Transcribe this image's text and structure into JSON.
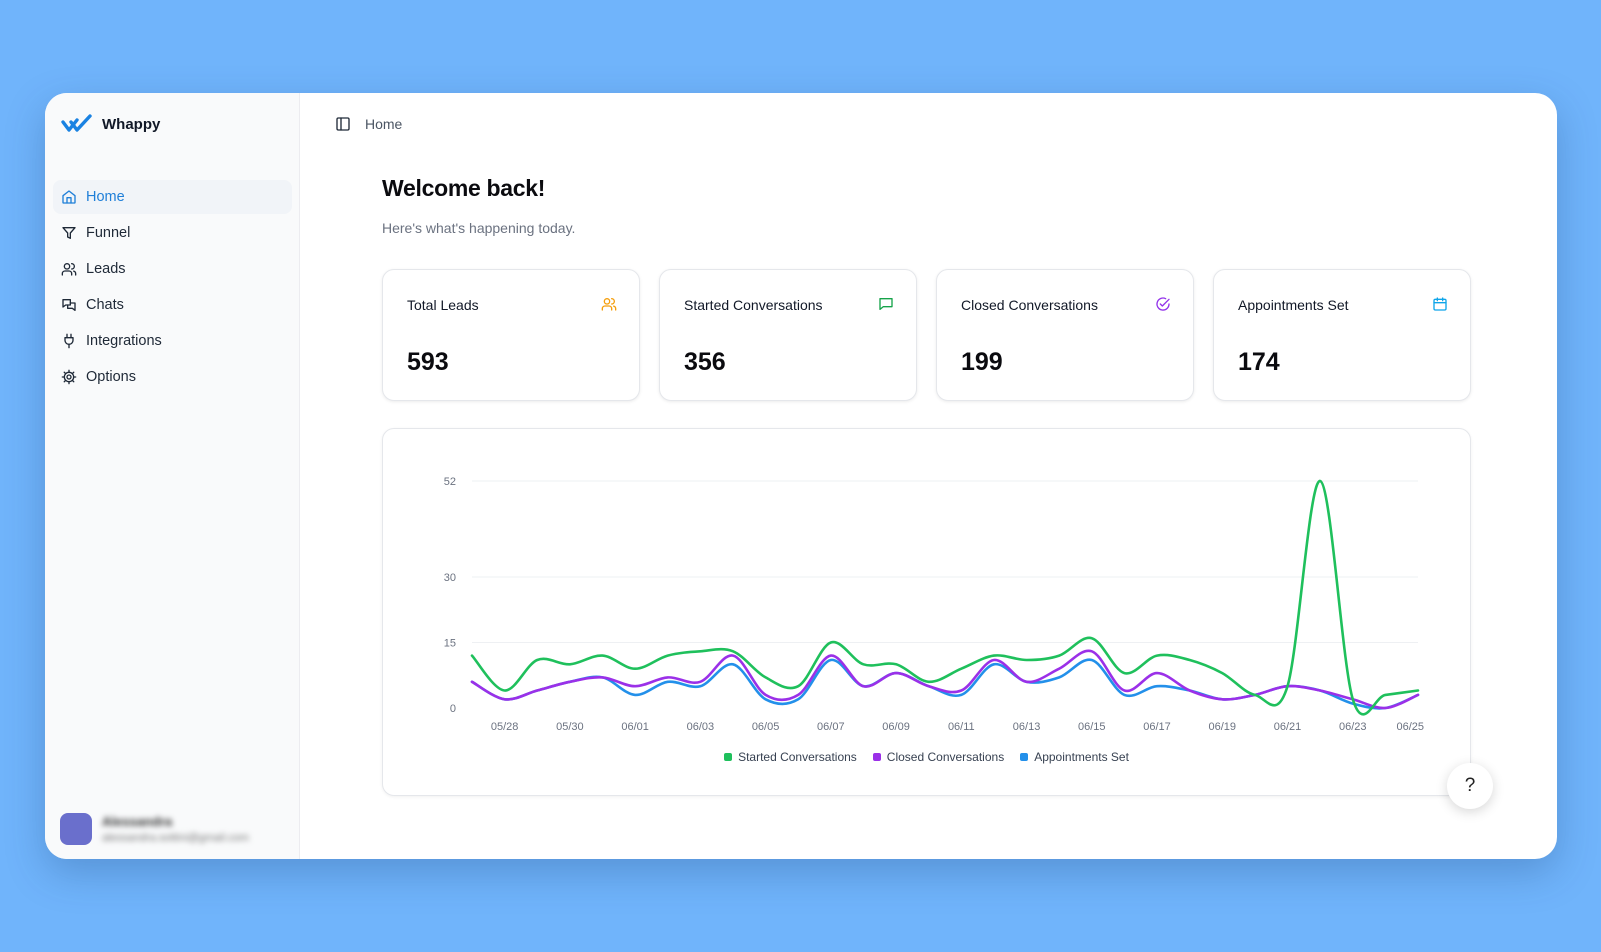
{
  "app": {
    "name": "Whappy"
  },
  "sidebar": {
    "items": [
      {
        "id": "home",
        "label": "Home",
        "icon": "home-icon",
        "active": true
      },
      {
        "id": "funnel",
        "label": "Funnel",
        "icon": "funnel-icon",
        "active": false
      },
      {
        "id": "leads",
        "label": "Leads",
        "icon": "users-icon",
        "active": false
      },
      {
        "id": "chats",
        "label": "Chats",
        "icon": "chats-icon",
        "active": false
      },
      {
        "id": "integrations",
        "label": "Integrations",
        "icon": "plug-icon",
        "active": false
      },
      {
        "id": "options",
        "label": "Options",
        "icon": "gear-icon",
        "active": false
      }
    ],
    "user": {
      "name": "Alessandra",
      "email": "alessandra.sottini@gmail.com"
    }
  },
  "header": {
    "breadcrumb": "Home",
    "toggle_icon": "sidebar-toggle-icon"
  },
  "page": {
    "title": "Welcome back!",
    "subtitle": "Here's what's happening today."
  },
  "stats": [
    {
      "label": "Total Leads",
      "value": "593",
      "icon": "users-icon",
      "color": "#f59e0b"
    },
    {
      "label": "Started Conversations",
      "value": "356",
      "icon": "message-icon",
      "color": "#16a34a"
    },
    {
      "label": "Closed Conversations",
      "value": "199",
      "icon": "check-circle-icon",
      "color": "#9333ea"
    },
    {
      "label": "Appointments Set",
      "value": "174",
      "icon": "calendar-icon",
      "color": "#0ea5e9"
    }
  ],
  "chart_data": {
    "type": "line",
    "x": [
      "05/27",
      "05/28",
      "05/29",
      "05/30",
      "05/31",
      "06/01",
      "06/02",
      "06/03",
      "06/04",
      "06/05",
      "06/06",
      "06/07",
      "06/08",
      "06/09",
      "06/10",
      "06/11",
      "06/12",
      "06/13",
      "06/14",
      "06/15",
      "06/16",
      "06/17",
      "06/18",
      "06/19",
      "06/20",
      "06/21",
      "06/22",
      "06/23",
      "06/24",
      "06/25"
    ],
    "x_tick_labels": [
      "05/28",
      "05/30",
      "06/01",
      "06/03",
      "06/05",
      "06/07",
      "06/09",
      "06/11",
      "06/13",
      "06/15",
      "06/17",
      "06/19",
      "06/21",
      "06/23",
      "06/25"
    ],
    "y_ticks": [
      0,
      15,
      30,
      52
    ],
    "ylim": [
      0,
      52
    ],
    "series": [
      {
        "name": "Started Conversations",
        "color": "#1fc05c",
        "values": [
          12,
          4,
          11,
          10,
          12,
          9,
          12,
          13,
          13,
          7,
          5,
          15,
          10,
          10,
          6,
          9,
          12,
          11,
          12,
          16,
          8,
          12,
          11,
          8,
          3,
          5,
          52,
          2,
          3,
          4
        ]
      },
      {
        "name": "Closed Conversations",
        "color": "#9b30e8",
        "values": [
          6,
          2,
          4,
          6,
          7,
          5,
          7,
          6,
          12,
          3,
          3,
          12,
          5,
          8,
          5,
          4,
          11,
          6,
          9,
          13,
          4,
          8,
          4,
          2,
          3,
          5,
          4,
          2,
          0,
          3
        ]
      },
      {
        "name": "Appointments Set",
        "color": "#2390ea",
        "values": [
          6,
          2,
          4,
          6,
          7,
          3,
          6,
          5,
          10,
          2,
          2,
          11,
          5,
          8,
          5,
          3,
          10,
          6,
          7,
          11,
          3,
          5,
          4,
          2,
          3,
          5,
          4,
          1,
          0,
          3
        ]
      }
    ],
    "grid": true,
    "legend": "bottom-center"
  }
}
